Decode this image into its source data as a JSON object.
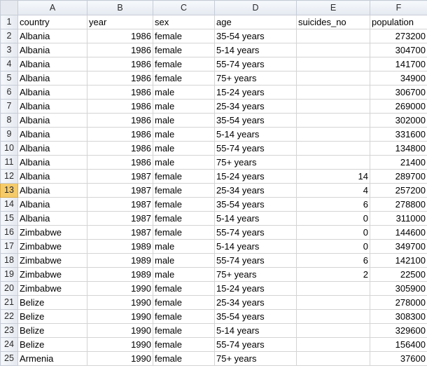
{
  "columns": [
    "A",
    "B",
    "C",
    "D",
    "E",
    "F"
  ],
  "header_row": {
    "num": "1",
    "cells": [
      "country",
      "year",
      "sex",
      "age",
      "suicides_no",
      "population"
    ]
  },
  "active_row": "13",
  "rows": [
    {
      "num": "2",
      "country": "Albania",
      "year": "1986",
      "sex": "female",
      "age": "35-54 years",
      "suicides": "",
      "population": "273200"
    },
    {
      "num": "3",
      "country": "Albania",
      "year": "1986",
      "sex": "female",
      "age": "5-14 years",
      "suicides": "",
      "population": "304700"
    },
    {
      "num": "4",
      "country": "Albania",
      "year": "1986",
      "sex": "female",
      "age": "55-74 years",
      "suicides": "",
      "population": "141700"
    },
    {
      "num": "5",
      "country": "Albania",
      "year": "1986",
      "sex": "female",
      "age": "75+ years",
      "suicides": "",
      "population": "34900"
    },
    {
      "num": "6",
      "country": "Albania",
      "year": "1986",
      "sex": "male",
      "age": "15-24 years",
      "suicides": "",
      "population": "306700"
    },
    {
      "num": "7",
      "country": "Albania",
      "year": "1986",
      "sex": "male",
      "age": "25-34 years",
      "suicides": "",
      "population": "269000"
    },
    {
      "num": "8",
      "country": "Albania",
      "year": "1986",
      "sex": "male",
      "age": "35-54 years",
      "suicides": "",
      "population": "302000"
    },
    {
      "num": "9",
      "country": "Albania",
      "year": "1986",
      "sex": "male",
      "age": "5-14 years",
      "suicides": "",
      "population": "331600"
    },
    {
      "num": "10",
      "country": "Albania",
      "year": "1986",
      "sex": "male",
      "age": "55-74 years",
      "suicides": "",
      "population": "134800"
    },
    {
      "num": "11",
      "country": "Albania",
      "year": "1986",
      "sex": "male",
      "age": "75+ years",
      "suicides": "",
      "population": "21400"
    },
    {
      "num": "12",
      "country": "Albania",
      "year": "1987",
      "sex": "female",
      "age": "15-24 years",
      "suicides": "14",
      "population": "289700"
    },
    {
      "num": "13",
      "country": "Albania",
      "year": "1987",
      "sex": "female",
      "age": "25-34 years",
      "suicides": "4",
      "population": "257200"
    },
    {
      "num": "14",
      "country": "Albania",
      "year": "1987",
      "sex": "female",
      "age": "35-54 years",
      "suicides": "6",
      "population": "278800"
    },
    {
      "num": "15",
      "country": "Albania",
      "year": "1987",
      "sex": "female",
      "age": "5-14 years",
      "suicides": "0",
      "population": "311000"
    },
    {
      "num": "16",
      "country": "Zimbabwe",
      "year": "1987",
      "sex": "female",
      "age": "55-74 years",
      "suicides": "0",
      "population": "144600"
    },
    {
      "num": "17",
      "country": "Zimbabwe",
      "year": "1989",
      "sex": "male",
      "age": "5-14 years",
      "suicides": "0",
      "population": "349700"
    },
    {
      "num": "18",
      "country": "Zimbabwe",
      "year": "1989",
      "sex": "male",
      "age": "55-74 years",
      "suicides": "6",
      "population": "142100"
    },
    {
      "num": "19",
      "country": "Zimbabwe",
      "year": "1989",
      "sex": "male",
      "age": "75+ years",
      "suicides": "2",
      "population": "22500"
    },
    {
      "num": "20",
      "country": "Zimbabwe",
      "year": "1990",
      "sex": "female",
      "age": "15-24 years",
      "suicides": "",
      "population": "305900"
    },
    {
      "num": "21",
      "country": "Belize",
      "year": "1990",
      "sex": "female",
      "age": "25-34 years",
      "suicides": "",
      "population": "278000"
    },
    {
      "num": "22",
      "country": "Belize",
      "year": "1990",
      "sex": "female",
      "age": "35-54 years",
      "suicides": "",
      "population": "308300"
    },
    {
      "num": "23",
      "country": "Belize",
      "year": "1990",
      "sex": "female",
      "age": "5-14 years",
      "suicides": "",
      "population": "329600"
    },
    {
      "num": "24",
      "country": "Belize",
      "year": "1990",
      "sex": "female",
      "age": "55-74 years",
      "suicides": "",
      "population": "156400"
    },
    {
      "num": "25",
      "country": "Armenia",
      "year": "1990",
      "sex": "female",
      "age": "75+ years",
      "suicides": "",
      "population": "37600"
    }
  ]
}
